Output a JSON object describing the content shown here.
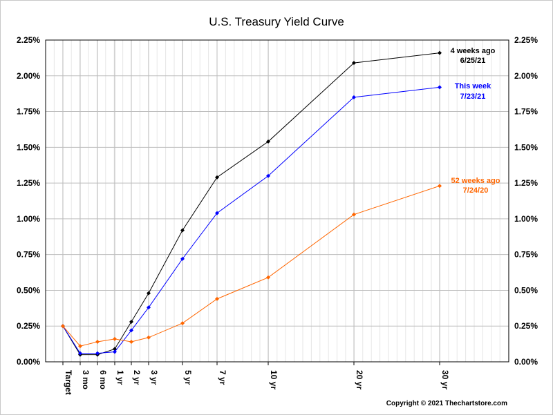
{
  "chart_data": {
    "type": "line",
    "title": "U.S. Treasury Yield Curve",
    "categories": [
      "Target",
      "3 mo",
      "6 mo",
      "1 yr",
      "2 yr",
      "3 yr",
      "5 yr",
      "7 yr",
      "10 yr",
      "20 yr",
      "30 yr"
    ],
    "x_maturity_years": [
      0,
      0.25,
      0.5,
      1,
      2,
      3,
      5,
      7,
      10,
      20,
      30
    ],
    "ylim": [
      0,
      2.25
    ],
    "y_ticks": [
      "0.00%",
      "0.25%",
      "0.50%",
      "0.75%",
      "1.00%",
      "1.25%",
      "1.50%",
      "1.75%",
      "2.00%",
      "2.25%"
    ],
    "grid": true,
    "series": [
      {
        "name": "4 weeks ago",
        "date": "6/25/21",
        "color": "#000000",
        "values": [
          0.25,
          0.05,
          0.05,
          0.09,
          0.28,
          0.48,
          0.92,
          1.29,
          1.54,
          2.09,
          2.16
        ]
      },
      {
        "name": "This week",
        "date": "7/23/21",
        "color": "#0000ff",
        "values": [
          0.25,
          0.06,
          0.06,
          0.07,
          0.22,
          0.38,
          0.72,
          1.04,
          1.3,
          1.85,
          1.92
        ]
      },
      {
        "name": "52 weeks ago",
        "date": "7/24/20",
        "color": "#ff6600",
        "values": [
          0.25,
          0.11,
          0.14,
          0.16,
          0.14,
          0.17,
          0.27,
          0.44,
          0.59,
          1.03,
          1.23
        ]
      }
    ],
    "copyright": "Copyright © 2021 Thechartstore.com"
  }
}
